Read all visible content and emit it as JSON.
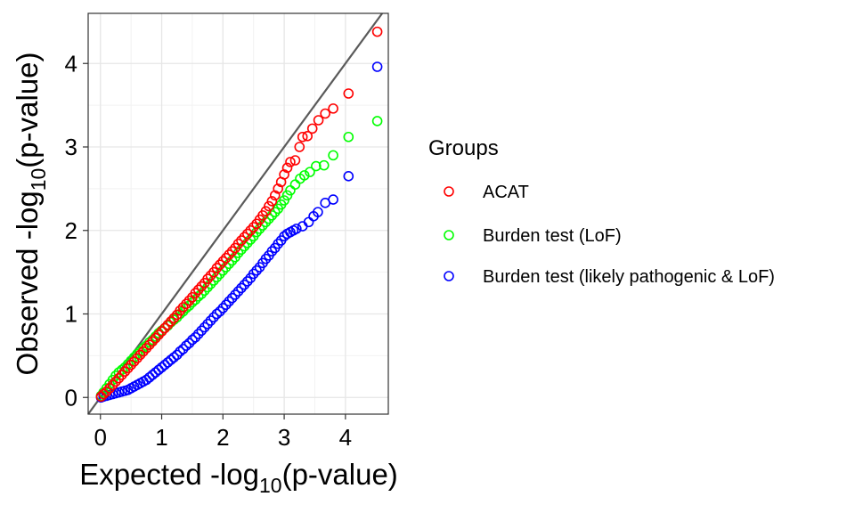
{
  "chart_data": {
    "type": "scatter",
    "title": "",
    "xlabel": {
      "prefix": "Expected -log",
      "sub": "10",
      "suffix": "(p-value)"
    },
    "ylabel": {
      "prefix": "Observed -log",
      "sub": "10",
      "suffix": "(p-value)"
    },
    "xlim": [
      -0.2,
      4.7
    ],
    "ylim": [
      -0.2,
      4.6
    ],
    "xticks": [
      0,
      1,
      2,
      3,
      4
    ],
    "yticks": [
      0,
      1,
      2,
      3,
      4
    ],
    "grid": true,
    "reference_line": {
      "slope": 1,
      "intercept": 0,
      "color": "#5a5a5a"
    },
    "legend": {
      "title": "Groups",
      "position": "right"
    },
    "series": [
      {
        "name": "ACAT",
        "color": "#ff0000",
        "x": [
          0.01,
          0.05,
          0.1,
          0.15,
          0.2,
          0.25,
          0.3,
          0.35,
          0.4,
          0.45,
          0.5,
          0.55,
          0.6,
          0.65,
          0.7,
          0.75,
          0.8,
          0.85,
          0.9,
          0.95,
          1.0,
          1.05,
          1.1,
          1.15,
          1.2,
          1.25,
          1.3,
          1.35,
          1.4,
          1.45,
          1.5,
          1.55,
          1.6,
          1.65,
          1.7,
          1.75,
          1.8,
          1.85,
          1.9,
          1.95,
          2.0,
          2.05,
          2.1,
          2.15,
          2.2,
          2.25,
          2.3,
          2.35,
          2.4,
          2.45,
          2.5,
          2.55,
          2.6,
          2.65,
          2.7,
          2.75,
          2.8,
          2.85,
          2.9,
          2.95,
          3.0,
          3.05,
          3.1,
          3.18,
          3.25,
          3.3,
          3.38,
          3.46,
          3.56,
          3.67,
          3.8,
          4.05,
          4.52
        ],
        "y": [
          0.01,
          0.04,
          0.07,
          0.11,
          0.15,
          0.19,
          0.23,
          0.27,
          0.31,
          0.35,
          0.39,
          0.43,
          0.47,
          0.51,
          0.55,
          0.59,
          0.63,
          0.67,
          0.71,
          0.75,
          0.79,
          0.83,
          0.87,
          0.91,
          0.95,
          0.99,
          1.04,
          1.08,
          1.12,
          1.16,
          1.2,
          1.25,
          1.29,
          1.33,
          1.37,
          1.42,
          1.46,
          1.5,
          1.55,
          1.59,
          1.63,
          1.67,
          1.71,
          1.75,
          1.79,
          1.84,
          1.88,
          1.92,
          1.96,
          2.0,
          2.04,
          2.08,
          2.13,
          2.18,
          2.23,
          2.29,
          2.35,
          2.42,
          2.5,
          2.58,
          2.67,
          2.75,
          2.82,
          2.84,
          3.0,
          3.12,
          3.13,
          3.22,
          3.32,
          3.4,
          3.46,
          3.64,
          4.38
        ]
      },
      {
        "name": "Burden test (LoF)",
        "color": "#00ff00",
        "x": [
          0.01,
          0.05,
          0.1,
          0.15,
          0.2,
          0.25,
          0.3,
          0.35,
          0.4,
          0.45,
          0.5,
          0.55,
          0.6,
          0.65,
          0.7,
          0.75,
          0.8,
          0.85,
          0.9,
          0.95,
          1.0,
          1.05,
          1.1,
          1.15,
          1.2,
          1.25,
          1.3,
          1.35,
          1.4,
          1.45,
          1.5,
          1.55,
          1.6,
          1.65,
          1.7,
          1.75,
          1.8,
          1.85,
          1.9,
          1.95,
          2.0,
          2.05,
          2.1,
          2.15,
          2.2,
          2.25,
          2.3,
          2.35,
          2.4,
          2.45,
          2.5,
          2.55,
          2.6,
          2.65,
          2.7,
          2.75,
          2.8,
          2.85,
          2.9,
          2.95,
          3.0,
          3.05,
          3.1,
          3.18,
          3.26,
          3.33,
          3.42,
          3.52,
          3.65,
          3.8,
          4.05,
          4.52
        ],
        "y": [
          0.02,
          0.06,
          0.11,
          0.16,
          0.21,
          0.26,
          0.3,
          0.33,
          0.36,
          0.4,
          0.44,
          0.48,
          0.52,
          0.55,
          0.59,
          0.62,
          0.66,
          0.69,
          0.73,
          0.77,
          0.8,
          0.83,
          0.86,
          0.9,
          0.93,
          0.96,
          1.0,
          1.03,
          1.07,
          1.1,
          1.14,
          1.17,
          1.21,
          1.24,
          1.28,
          1.32,
          1.36,
          1.4,
          1.44,
          1.48,
          1.52,
          1.56,
          1.6,
          1.64,
          1.68,
          1.73,
          1.77,
          1.81,
          1.85,
          1.89,
          1.93,
          1.98,
          2.02,
          2.06,
          2.1,
          2.14,
          2.18,
          2.22,
          2.26,
          2.31,
          2.36,
          2.42,
          2.48,
          2.55,
          2.62,
          2.66,
          2.7,
          2.77,
          2.78,
          2.9,
          3.12,
          3.31
        ]
      },
      {
        "name": "Burden test (likely pathogenic & LoF)",
        "color": "#0000ff",
        "x": [
          0.01,
          0.05,
          0.1,
          0.15,
          0.2,
          0.25,
          0.3,
          0.35,
          0.4,
          0.45,
          0.5,
          0.55,
          0.6,
          0.65,
          0.7,
          0.75,
          0.8,
          0.85,
          0.9,
          0.95,
          1.0,
          1.05,
          1.1,
          1.15,
          1.2,
          1.25,
          1.3,
          1.35,
          1.4,
          1.45,
          1.5,
          1.55,
          1.6,
          1.65,
          1.7,
          1.75,
          1.8,
          1.85,
          1.9,
          1.95,
          2.0,
          2.05,
          2.1,
          2.15,
          2.2,
          2.25,
          2.3,
          2.35,
          2.4,
          2.45,
          2.5,
          2.55,
          2.6,
          2.65,
          2.7,
          2.75,
          2.8,
          2.85,
          2.9,
          2.95,
          3.0,
          3.05,
          3.1,
          3.15,
          3.2,
          3.3,
          3.4,
          3.48,
          3.55,
          3.67,
          3.8,
          4.05,
          4.52
        ],
        "y": [
          0.0,
          0.01,
          0.02,
          0.03,
          0.04,
          0.05,
          0.06,
          0.07,
          0.08,
          0.09,
          0.11,
          0.13,
          0.15,
          0.17,
          0.19,
          0.21,
          0.24,
          0.27,
          0.3,
          0.33,
          0.36,
          0.39,
          0.42,
          0.45,
          0.48,
          0.51,
          0.55,
          0.58,
          0.62,
          0.65,
          0.69,
          0.72,
          0.76,
          0.8,
          0.84,
          0.88,
          0.92,
          0.96,
          1.0,
          1.03,
          1.07,
          1.11,
          1.15,
          1.19,
          1.23,
          1.27,
          1.31,
          1.35,
          1.39,
          1.43,
          1.48,
          1.52,
          1.56,
          1.61,
          1.66,
          1.7,
          1.75,
          1.79,
          1.84,
          1.88,
          1.93,
          1.96,
          1.98,
          2.0,
          2.02,
          2.05,
          2.1,
          2.17,
          2.22,
          2.33,
          2.37,
          2.65,
          3.96
        ]
      }
    ]
  }
}
